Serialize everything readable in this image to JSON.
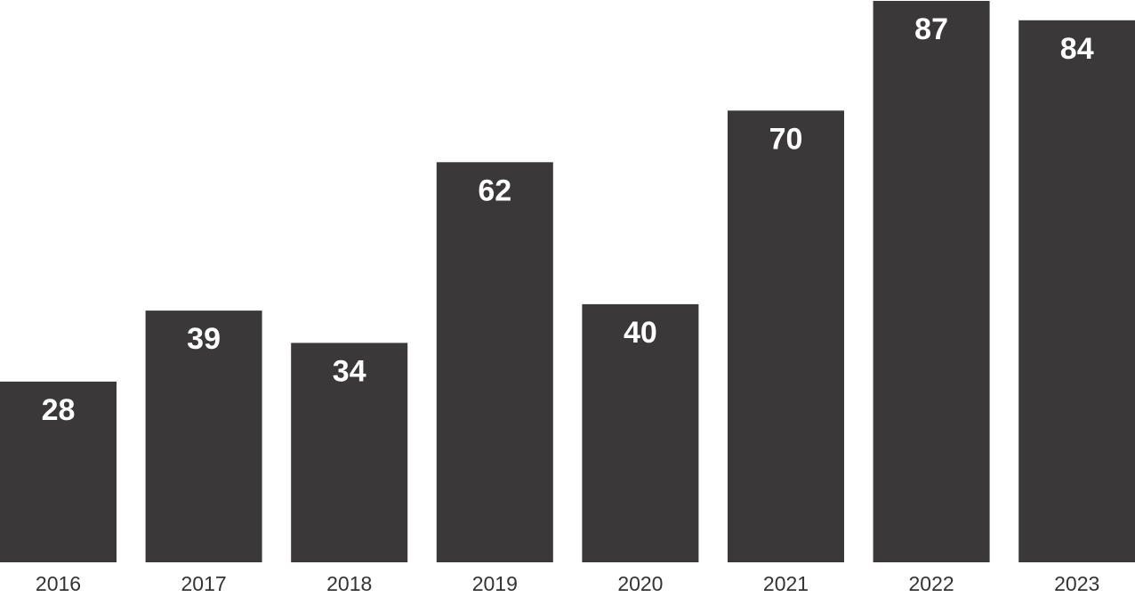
{
  "chart_data": {
    "type": "bar",
    "categories": [
      "2016",
      "2017",
      "2018",
      "2019",
      "2020",
      "2021",
      "2022",
      "2023"
    ],
    "values": [
      28,
      39,
      34,
      62,
      40,
      70,
      87,
      84
    ],
    "title": "",
    "xlabel": "",
    "ylabel": "",
    "ylim": [
      0,
      87
    ],
    "grid": false,
    "legend": "none",
    "data_labels": "inside-top",
    "bar_color": "#3a3839",
    "label_color": "#ffffff",
    "axis_text_color": "#333333"
  }
}
